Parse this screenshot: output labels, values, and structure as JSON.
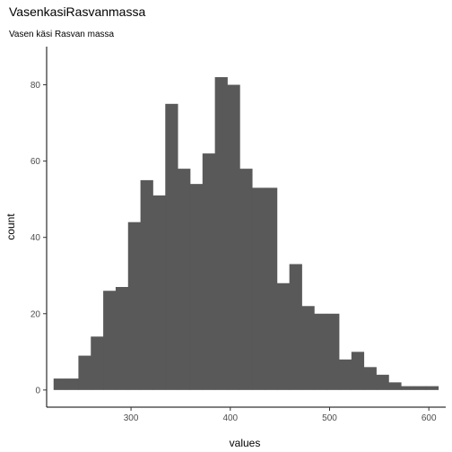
{
  "chart_data": {
    "type": "bar",
    "title": "VasenkasiRasvanmassa",
    "subtitle": "Vasen käsi Rasvan massa",
    "xlabel": "values",
    "ylabel": "count",
    "xlim": [
      215,
      617
    ],
    "ylim": [
      -4.5,
      90
    ],
    "xticks": [
      300,
      400,
      500,
      600
    ],
    "yticks": [
      0,
      20,
      40,
      60,
      80
    ],
    "bin_width": 12.5,
    "bins": [
      {
        "x0": 222,
        "count": 3
      },
      {
        "x0": 234.5,
        "count": 3
      },
      {
        "x0": 247,
        "count": 9
      },
      {
        "x0": 259.5,
        "count": 14
      },
      {
        "x0": 272,
        "count": 26
      },
      {
        "x0": 284.5,
        "count": 27
      },
      {
        "x0": 297,
        "count": 44
      },
      {
        "x0": 309.5,
        "count": 55
      },
      {
        "x0": 322,
        "count": 51
      },
      {
        "x0": 334.5,
        "count": 75
      },
      {
        "x0": 347,
        "count": 58
      },
      {
        "x0": 359.5,
        "count": 54
      },
      {
        "x0": 372,
        "count": 62
      },
      {
        "x0": 384.5,
        "count": 82
      },
      {
        "x0": 397,
        "count": 80
      },
      {
        "x0": 409.5,
        "count": 58
      },
      {
        "x0": 422,
        "count": 53
      },
      {
        "x0": 434.5,
        "count": 53
      },
      {
        "x0": 447,
        "count": 28
      },
      {
        "x0": 459.5,
        "count": 33
      },
      {
        "x0": 472,
        "count": 22
      },
      {
        "x0": 484.5,
        "count": 20
      },
      {
        "x0": 497,
        "count": 20
      },
      {
        "x0": 509.5,
        "count": 8
      },
      {
        "x0": 522,
        "count": 10
      },
      {
        "x0": 534.5,
        "count": 6
      },
      {
        "x0": 547,
        "count": 4
      },
      {
        "x0": 559.5,
        "count": 2
      },
      {
        "x0": 572,
        "count": 1
      },
      {
        "x0": 584.5,
        "count": 1
      },
      {
        "x0": 597,
        "count": 1
      }
    ],
    "bar_color": "#595959",
    "grid": false,
    "legend": "none"
  }
}
